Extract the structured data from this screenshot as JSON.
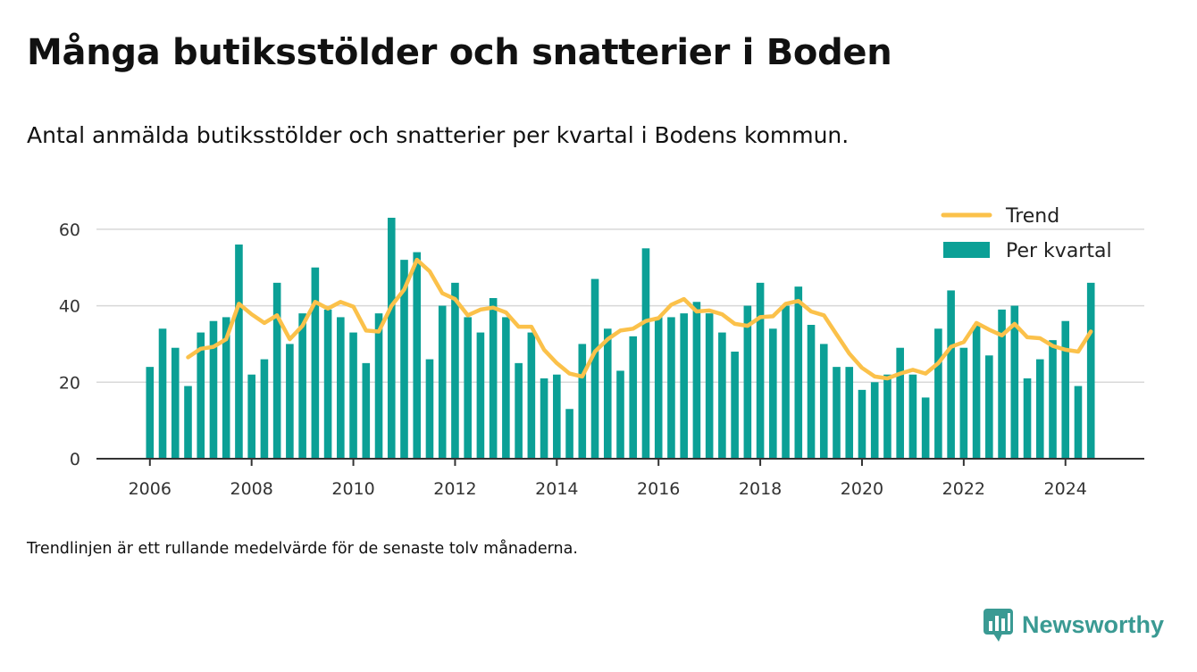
{
  "title": "Många butiksstölder och snatterier i Boden",
  "subtitle": "Antal anmälda butiksstölder och snatterier per kvartal i Bodens kommun.",
  "note": "Trendlinjen är ett rullande medelvärde för de senaste tolv månaderna.",
  "brand": "Newsworthy",
  "colors": {
    "bars": "#0ba096",
    "trend": "#fbc14a",
    "grid": "#d8d8d8",
    "axis": "#333333"
  },
  "chart_data": {
    "type": "bar",
    "xlabel": "",
    "ylabel": "",
    "ylim": [
      0,
      70
    ],
    "xlim": [
      2004.95,
      2025.55
    ],
    "y_ticks": [
      0,
      20,
      40,
      60
    ],
    "x_ticks": [
      2006,
      2008,
      2010,
      2012,
      2014,
      2016,
      2018,
      2020,
      2022,
      2024
    ],
    "grid": true,
    "legend_position": "top-right",
    "x_start": 2006.0,
    "x_step": 0.25,
    "series": [
      {
        "name": "Per kvartal",
        "kind": "bar",
        "values": [
          24,
          34,
          29,
          19,
          33,
          36,
          37,
          56,
          22,
          26,
          46,
          30,
          38,
          50,
          39,
          37,
          33,
          25,
          38,
          63,
          52,
          54,
          26,
          40,
          46,
          37,
          33,
          42,
          37,
          25,
          33,
          21,
          22,
          13,
          30,
          47,
          34,
          23,
          32,
          55,
          37,
          37,
          38,
          41,
          38,
          33,
          28,
          40,
          46,
          34,
          40,
          45,
          35,
          30,
          24,
          24,
          18,
          20,
          22,
          29,
          22,
          16,
          34,
          44,
          29,
          35,
          27,
          39,
          40,
          21,
          26,
          31,
          36,
          19,
          46
        ]
      },
      {
        "name": "Trend",
        "kind": "line",
        "x": [
          2006.75,
          2007.0,
          2007.25,
          2007.5,
          2007.75,
          2008.0,
          2008.25,
          2008.5,
          2008.75,
          2009.0,
          2009.25,
          2009.5,
          2009.75,
          2010.0,
          2010.25,
          2010.5,
          2010.75,
          2011.0,
          2011.25,
          2011.5,
          2011.75,
          2012.0,
          2012.25,
          2012.5,
          2012.75,
          2013.0,
          2013.25,
          2013.5,
          2013.75,
          2014.0,
          2014.25,
          2014.5,
          2014.75,
          2015.0,
          2015.25,
          2015.5,
          2015.75,
          2016.0,
          2016.25,
          2016.5,
          2016.75,
          2017.0,
          2017.25,
          2017.5,
          2017.75,
          2018.0,
          2018.25,
          2018.5,
          2018.75,
          2019.0,
          2019.25,
          2019.5,
          2019.75,
          2020.0,
          2020.25,
          2020.5,
          2020.75,
          2021.0,
          2021.25,
          2021.5,
          2021.75,
          2022.0,
          2022.25,
          2022.5,
          2022.75,
          2023.0,
          2023.25,
          2023.5,
          2023.75,
          2024.0,
          2024.25,
          2024.5
        ],
        "values": [
          26.5,
          28.75,
          29.25,
          31.25,
          40.5,
          37.75,
          35.5,
          37.5,
          31.25,
          34.75,
          41.0,
          39.25,
          41.0,
          39.75,
          33.5,
          33.25,
          40.0,
          44.25,
          52.0,
          49.0,
          43.25,
          41.75,
          37.5,
          39.0,
          39.5,
          38.25,
          34.5,
          34.5,
          28.5,
          25.0,
          22.25,
          21.5,
          28.0,
          31.25,
          33.5,
          34.0,
          36.0,
          36.75,
          40.25,
          41.75,
          38.5,
          38.75,
          37.75,
          35.25,
          34.75,
          37.0,
          37.25,
          40.5,
          41.25,
          38.5,
          37.5,
          32.5,
          27.5,
          23.75,
          21.5,
          21.0,
          22.25,
          23.25,
          22.25,
          25.0,
          29.25,
          30.5,
          35.5,
          33.75,
          32.25,
          35.25,
          31.75,
          31.5,
          29.5,
          28.5,
          28.0,
          33.25
        ]
      }
    ]
  }
}
